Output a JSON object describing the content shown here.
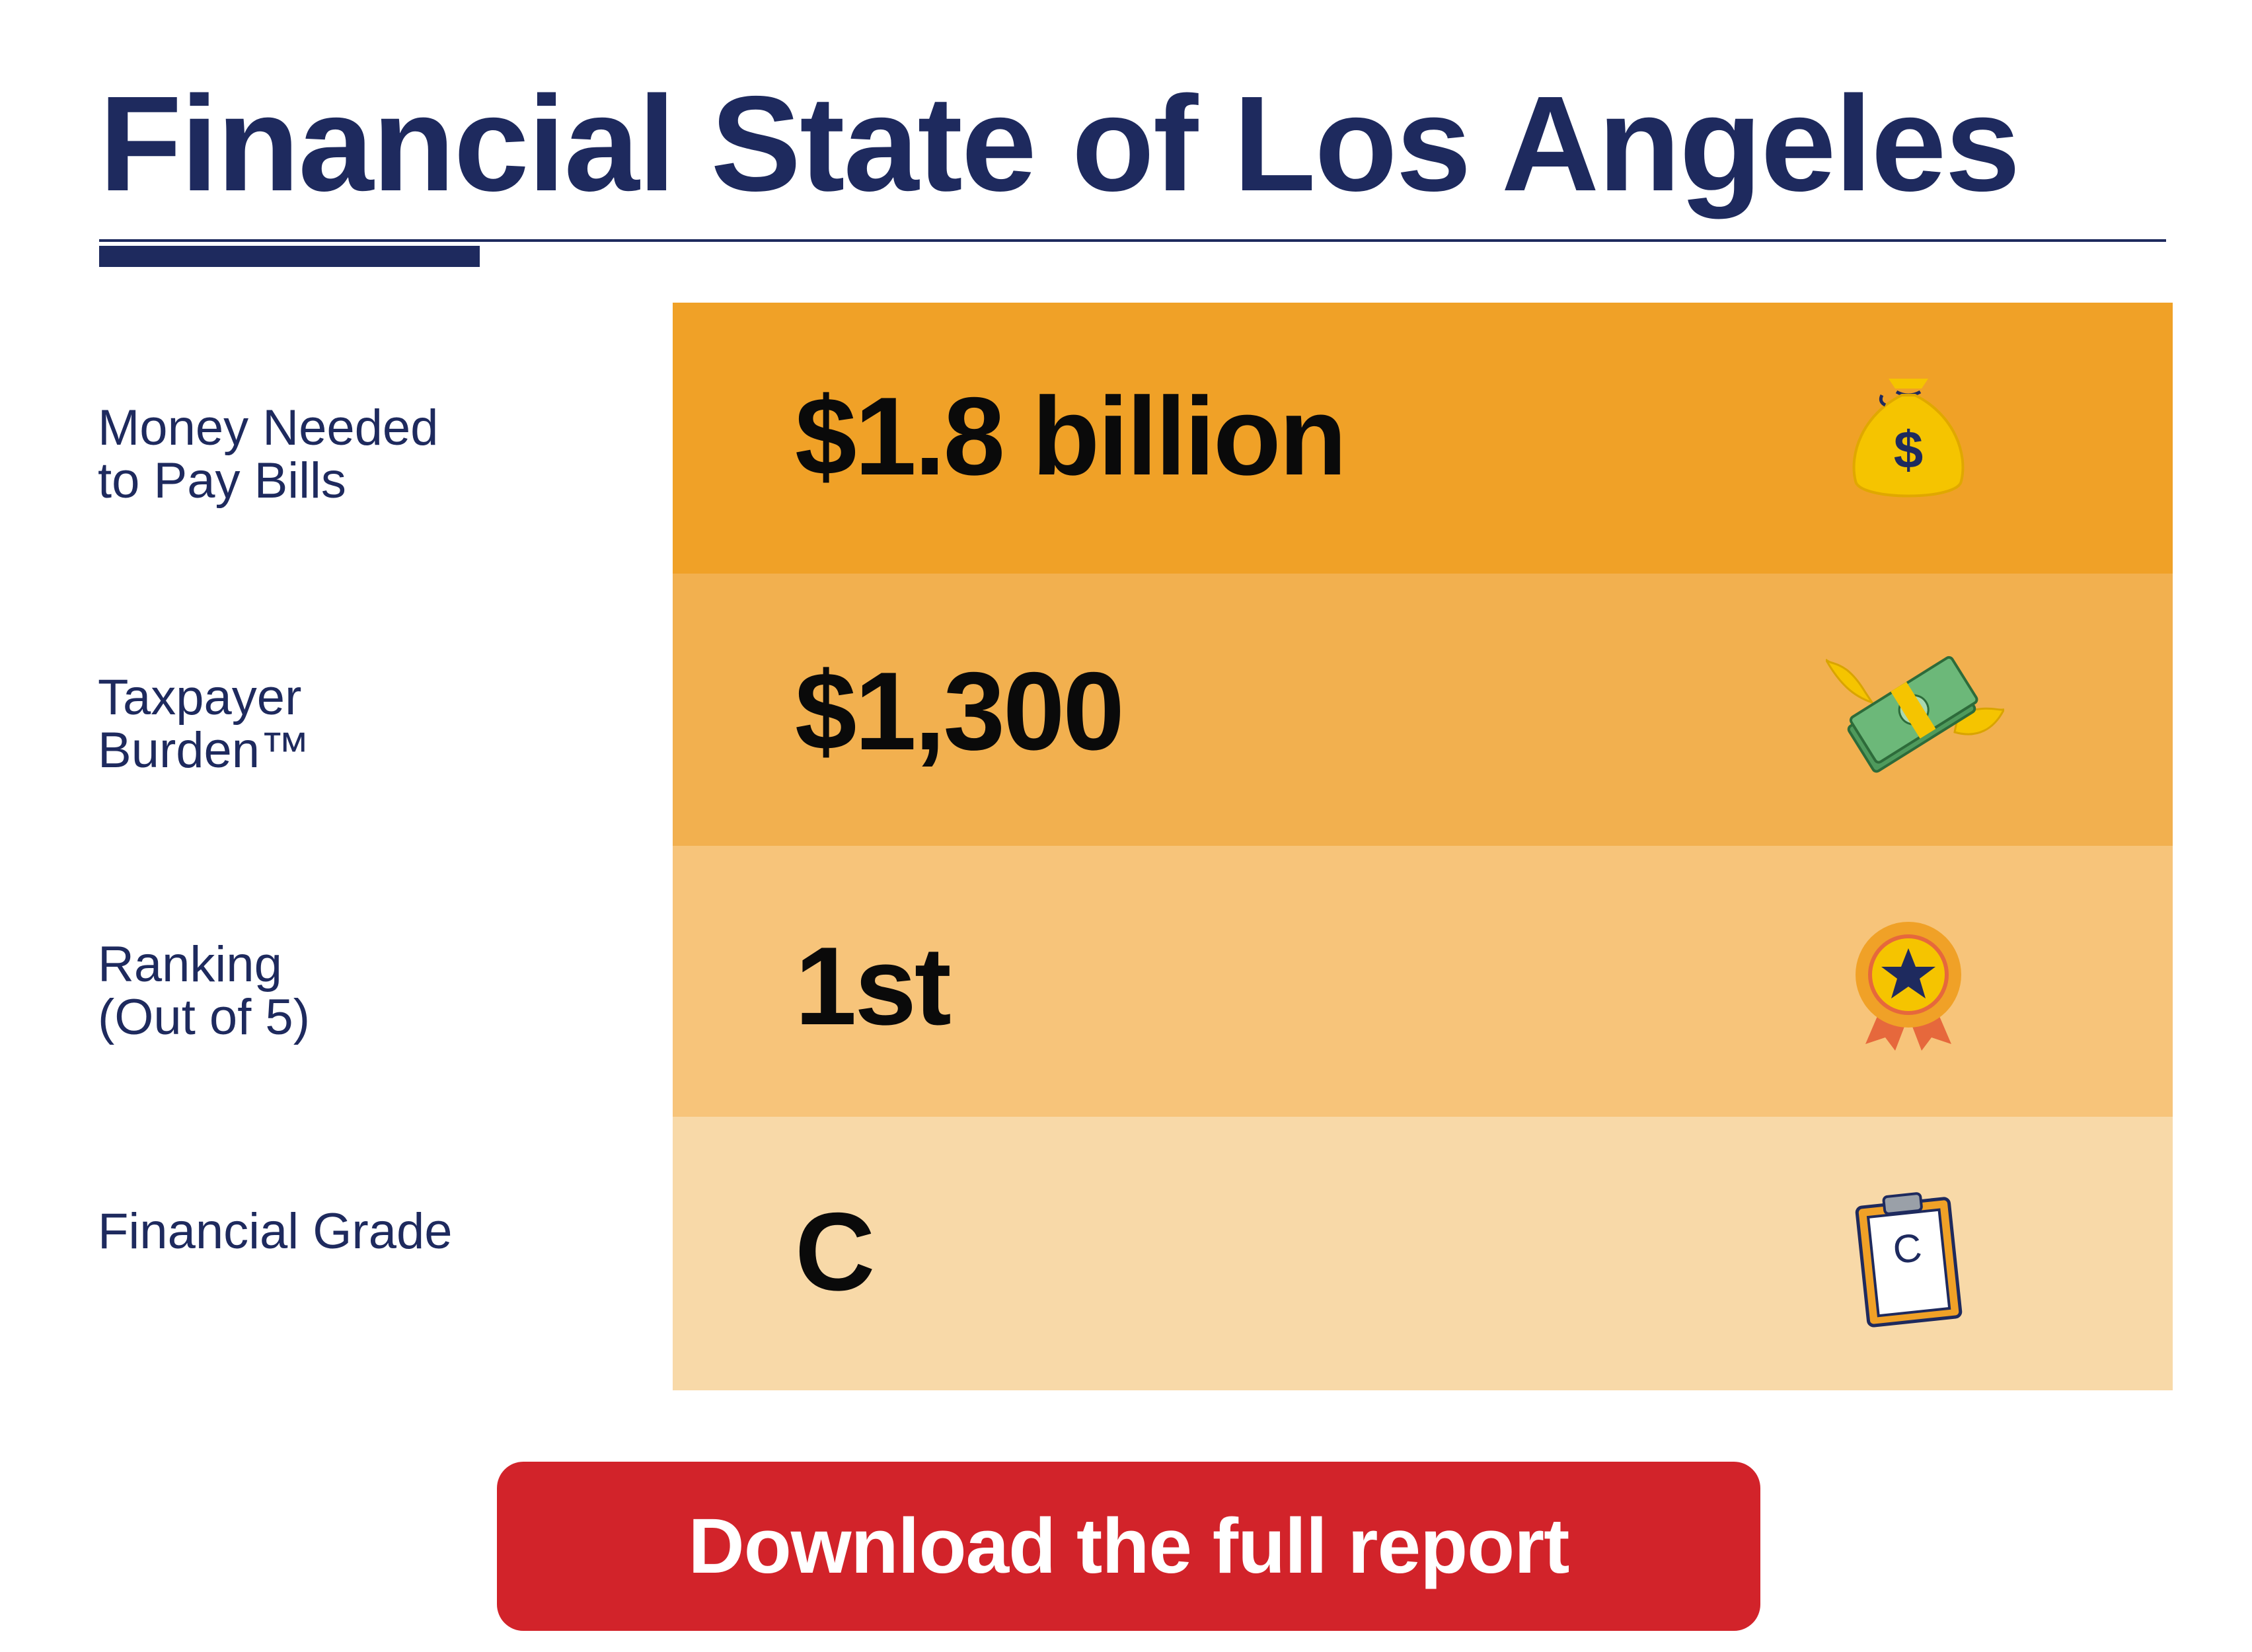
{
  "header": {
    "title": "Financial State of Los Angeles"
  },
  "rows": [
    {
      "label": "Money Needed\nto Pay Bills",
      "value": "$1.8 billion",
      "icon": "money-bag-icon",
      "icon_glyph": "$",
      "color": "#f0a127"
    },
    {
      "label": "Taxpayer\nBurden™",
      "value": "$1,300",
      "icon": "flying-money-icon",
      "color": "#f2b04f"
    },
    {
      "label": "Ranking\n(Out of 5)",
      "value": "1st",
      "icon": "award-ribbon-icon",
      "color": "#f7c47a"
    },
    {
      "label": "Financial Grade",
      "value": "C",
      "icon": "clipboard-icon",
      "icon_glyph": "C",
      "color": "#f8d9a8"
    }
  ],
  "cta": {
    "label": "Download the full report"
  },
  "colors": {
    "navy": "#1e2a5e",
    "button": "#d2232a"
  }
}
